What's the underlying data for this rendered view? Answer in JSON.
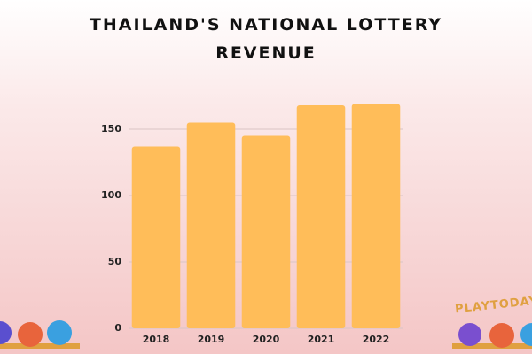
{
  "chart_data": {
    "type": "bar",
    "title": "THAILAND'S NATIONAL LOTTERY REVENUE",
    "categories": [
      "2018",
      "2019",
      "2020",
      "2021",
      "2022"
    ],
    "values": [
      137,
      155,
      145,
      168,
      169
    ],
    "color": "#ffbd59",
    "ylim": [
      0,
      170
    ],
    "yticks": [
      0,
      50,
      100,
      150
    ],
    "grid": true,
    "watermark": "PLAYTODAY"
  }
}
